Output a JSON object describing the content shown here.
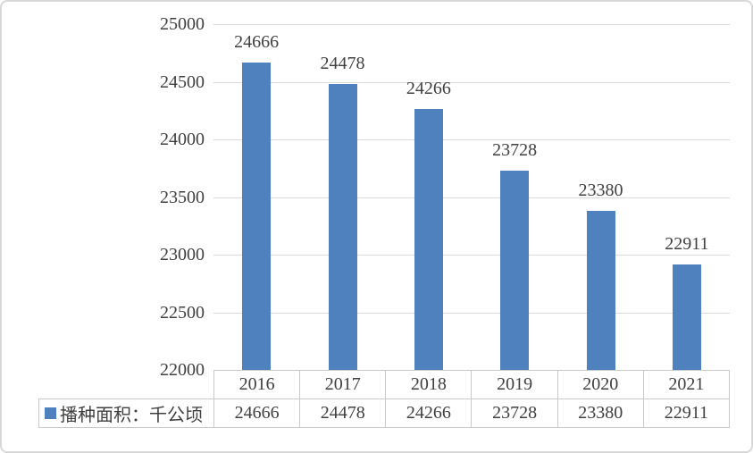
{
  "chart_data": {
    "type": "bar",
    "title": "",
    "categories": [
      "2016",
      "2017",
      "2018",
      "2019",
      "2020",
      "2021"
    ],
    "series": [
      {
        "name": "播种面积：千公顷",
        "values": [
          24666,
          24478,
          24266,
          23728,
          23380,
          22911
        ]
      }
    ],
    "xlabel": "",
    "ylabel": "",
    "ylim": [
      22000,
      25000
    ],
    "yticks": [
      25000,
      24500,
      24000,
      23500,
      23000,
      22500,
      22000
    ],
    "grid": true,
    "data_labels": true,
    "legend_position": "bottom-left",
    "data_table_shown": true
  },
  "colors": {
    "bar": "#4E81BD",
    "gridline": "#D9D9D9",
    "table_border": "#C9C9C9",
    "text": "#404040",
    "frame_border": "#D9D9D9",
    "background": "#FFFFFF"
  }
}
